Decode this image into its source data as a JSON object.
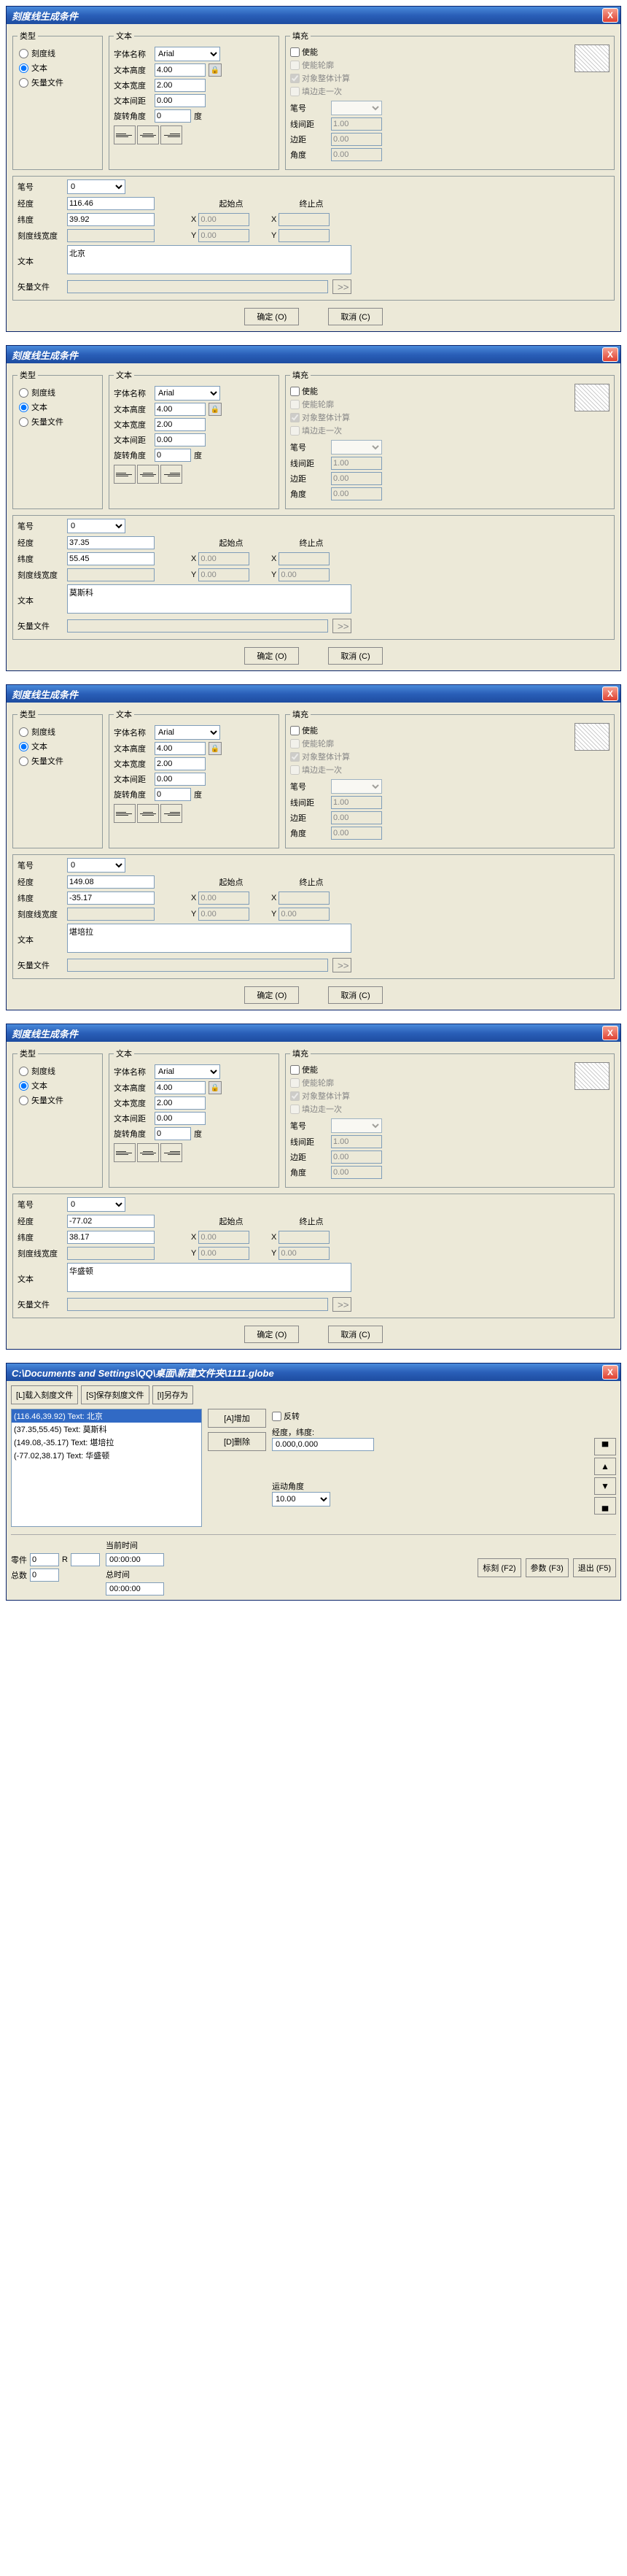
{
  "dialogs": [
    {
      "title": "刻度线生成条件",
      "jd": "116.46",
      "wd": "39.92",
      "kdw": "",
      "txt": "北京",
      "sx": "0.00",
      "sy": "0.00",
      "ex": "",
      "ey": ""
    },
    {
      "title": "刻度线生成条件",
      "jd": "37.35",
      "wd": "55.45",
      "kdw": "",
      "txt": "莫斯科",
      "sx": "0.00",
      "sy": "0.00",
      "ex": "",
      "ey": "0.00"
    },
    {
      "title": "刻度线生成条件",
      "jd": "149.08",
      "wd": "-35.17",
      "kdw": "",
      "txt": "堪培拉",
      "sx": "0.00",
      "sy": "0.00",
      "ex": "",
      "ey": "0.00"
    },
    {
      "title": "刻度线生成条件",
      "jd": "-77.02",
      "wd": "38.17",
      "kdw": "",
      "txt": "华盛顿",
      "sx": "0.00",
      "sy": "0.00",
      "ex": "",
      "ey": "0.00"
    }
  ],
  "common": {
    "type_group": "类型",
    "type_kdx": "刻度线",
    "type_text": "文本",
    "type_vf": "矢量文件",
    "text_group": "文本",
    "font_name_lbl": "字体名称",
    "font_name": "Arial",
    "text_h_lbl": "文本高度",
    "text_h": "4.00",
    "text_w_lbl": "文本宽度",
    "text_w": "2.00",
    "text_sp_lbl": "文本间距",
    "text_sp": "0.00",
    "rot_lbl": "旋转角度",
    "rot": "0",
    "deg": "度",
    "fill_group": "填充",
    "fill_enable": "使能",
    "fill_outline": "使能轮廓",
    "fill_whole": "对象整体计算",
    "fill_once": "填边走一次",
    "pen_lbl": "笔号",
    "pen_val": "0",
    "lsp_lbl": "线间距",
    "lsp": "1.00",
    "edge_lbl": "边距",
    "edge": "0.00",
    "ang_lbl": "角度",
    "ang": "0.00",
    "jd_lbl": "经度",
    "wd_lbl": "纬度",
    "kdw_lbl": "刻度线宽度",
    "txt_lbl": "文本",
    "vf_lbl": "矢量文件",
    "start_lbl": "起始点",
    "end_lbl": "终止点",
    "x": "X",
    "y": "Y",
    "ok": "确定 (O)",
    "cancel": "取消 (C)",
    "browse": ">>"
  },
  "win5": {
    "title": "C:\\Documents and Settings\\QQ\\桌面\\新建文件夹\\1111.globe",
    "btn_load": "[L]载入刻度文件",
    "btn_save": "[S]保存刻度文件",
    "btn_saveas": "[I]另存为",
    "btn_add": "[A]增加",
    "btn_del": "[D]删除",
    "items": [
      {
        "t": "(116.46,39.92) Text: 北京",
        "sel": true
      },
      {
        "t": "(37.35,55.45) Text: 莫斯科",
        "sel": false
      },
      {
        "t": "(149.08,-35.17) Text: 堪培拉",
        "sel": false
      },
      {
        "t": "(-77.02,38.17) Text: 华盛顿",
        "sel": false
      }
    ],
    "inverse": "反转",
    "coord_lbl": "经度，纬度:",
    "coord": "0.000,0.000",
    "move_ang_lbl": "运动角度",
    "move_ang": "10.00",
    "parts_lbl": "零件",
    "parts": "0",
    "r_lbl": "R",
    "r": "",
    "total_lbl": "总数",
    "total": "0",
    "curtime_lbl": "当前时间",
    "curtime": "00:00:00",
    "tottime_lbl": "总时间",
    "tottime": "00:00:00",
    "mark": "标刻 (F2)",
    "param": "参数 (F3)",
    "exit": "退出 (F5)"
  }
}
